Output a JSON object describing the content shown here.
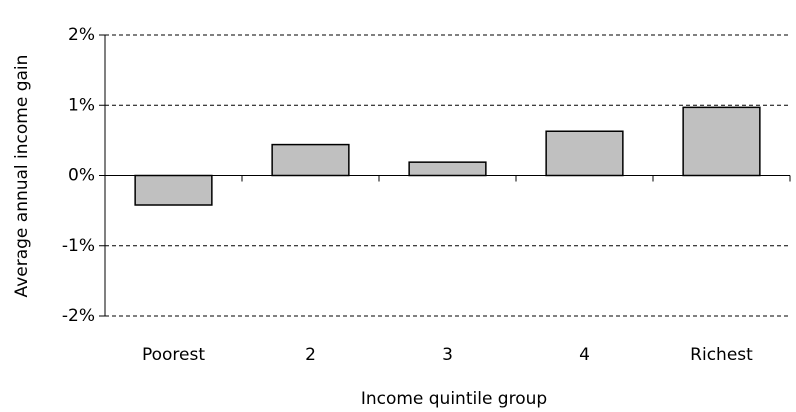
{
  "chart_data": {
    "type": "bar",
    "x_label": "Income quintile group",
    "y_label": "Average annual income gain",
    "categories": [
      "Poorest",
      "2",
      "3",
      "4",
      "Richest"
    ],
    "values": [
      -0.42,
      0.44,
      0.19,
      0.63,
      0.97
    ],
    "color": "#c0c0c0",
    "ylim": [
      -2,
      2
    ],
    "yticks": [
      {
        "value": -2,
        "label": "-2%"
      },
      {
        "value": -1,
        "label": "-1%"
      },
      {
        "value": 0,
        "label": "0%"
      },
      {
        "value": 1,
        "label": "1%"
      },
      {
        "value": 2,
        "label": "2%"
      }
    ],
    "grid": true
  }
}
